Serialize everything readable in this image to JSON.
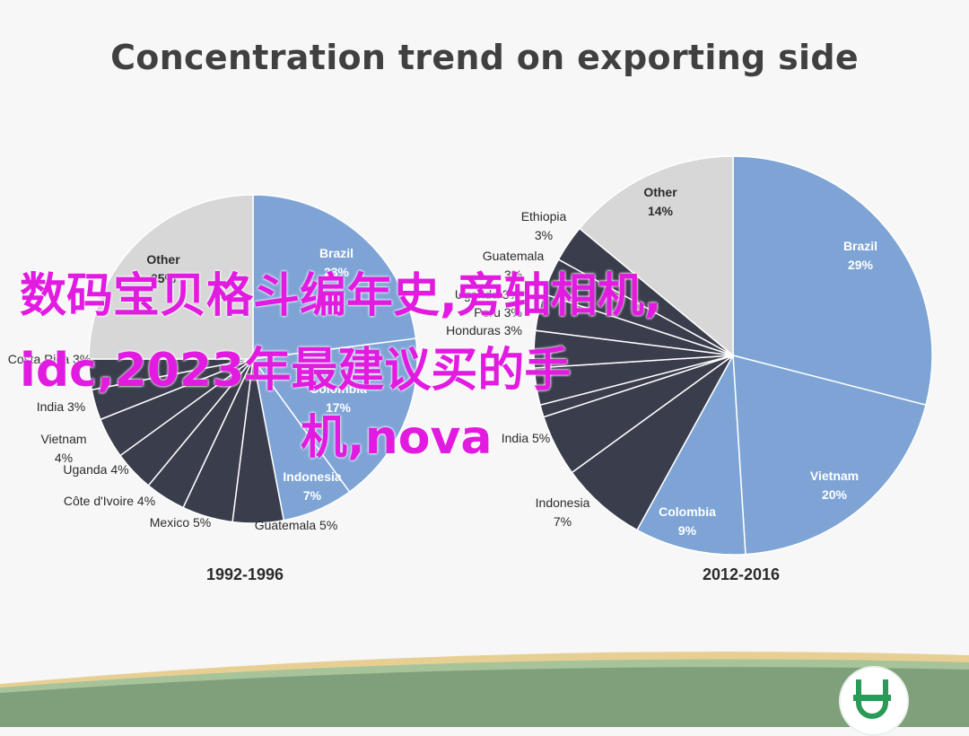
{
  "slide": {
    "title": "Concentration trend on exporting side"
  },
  "overlay": {
    "lines": [
      "数码宝贝格斗编年史,旁轴相机,",
      "idc,2023年最建议买的手",
      "机,nova"
    ]
  },
  "colors": {
    "brazil": "#7ea4d6",
    "other": "#d7d7d7",
    "dark": "#3a3e4c",
    "highlight": "#7ea4d6",
    "overlay_text": "#e21be0",
    "footer_green": "#7fa07a"
  },
  "chart_data": [
    {
      "type": "pie",
      "title": "1992-1996",
      "slices": [
        {
          "label": "Brazil",
          "value": 23,
          "display": "23%"
        },
        {
          "label": "Colombia",
          "value": 17,
          "display": "17%"
        },
        {
          "label": "Indonesia",
          "value": 7,
          "display": "7%"
        },
        {
          "label": "Guatemala",
          "value": 5,
          "display": "5%"
        },
        {
          "label": "Mexico",
          "value": 5,
          "display": "5%"
        },
        {
          "label": "Côte d'Ivoire",
          "value": 4,
          "display": "4%"
        },
        {
          "label": "Uganda",
          "value": 4,
          "display": "4%"
        },
        {
          "label": "Vietnam",
          "value": 4,
          "display": "4%"
        },
        {
          "label": "India",
          "value": 3,
          "display": "3%"
        },
        {
          "label": "Costa Rica",
          "value": 3,
          "display": "3%"
        },
        {
          "label": "",
          "value": 0,
          "display": ""
        },
        {
          "label": "Other",
          "value": 25,
          "display": "25%"
        }
      ]
    },
    {
      "type": "pie",
      "title": "2012-2016",
      "slices": [
        {
          "label": "Brazil",
          "value": 29,
          "display": "29%"
        },
        {
          "label": "Vietnam",
          "value": 20,
          "display": "20%"
        },
        {
          "label": "Colombia",
          "value": 9,
          "display": "9%"
        },
        {
          "label": "Indonesia",
          "value": 7,
          "display": "7%"
        },
        {
          "label": "India",
          "value": 5,
          "display": "5%"
        },
        {
          "label": "",
          "value": 0,
          "display": ""
        },
        {
          "label": "Uganda",
          "value": 3,
          "display": "3%"
        },
        {
          "label": "Peru",
          "value": 3,
          "display": "3%"
        },
        {
          "label": "Honduras",
          "value": 3,
          "display": "3%"
        },
        {
          "label": "Guatemala",
          "value": 3,
          "display": "3%"
        },
        {
          "label": "Ethiopia",
          "value": 3,
          "display": "3%"
        },
        {
          "label": "Other",
          "value": 14,
          "display": "14%"
        }
      ]
    }
  ]
}
